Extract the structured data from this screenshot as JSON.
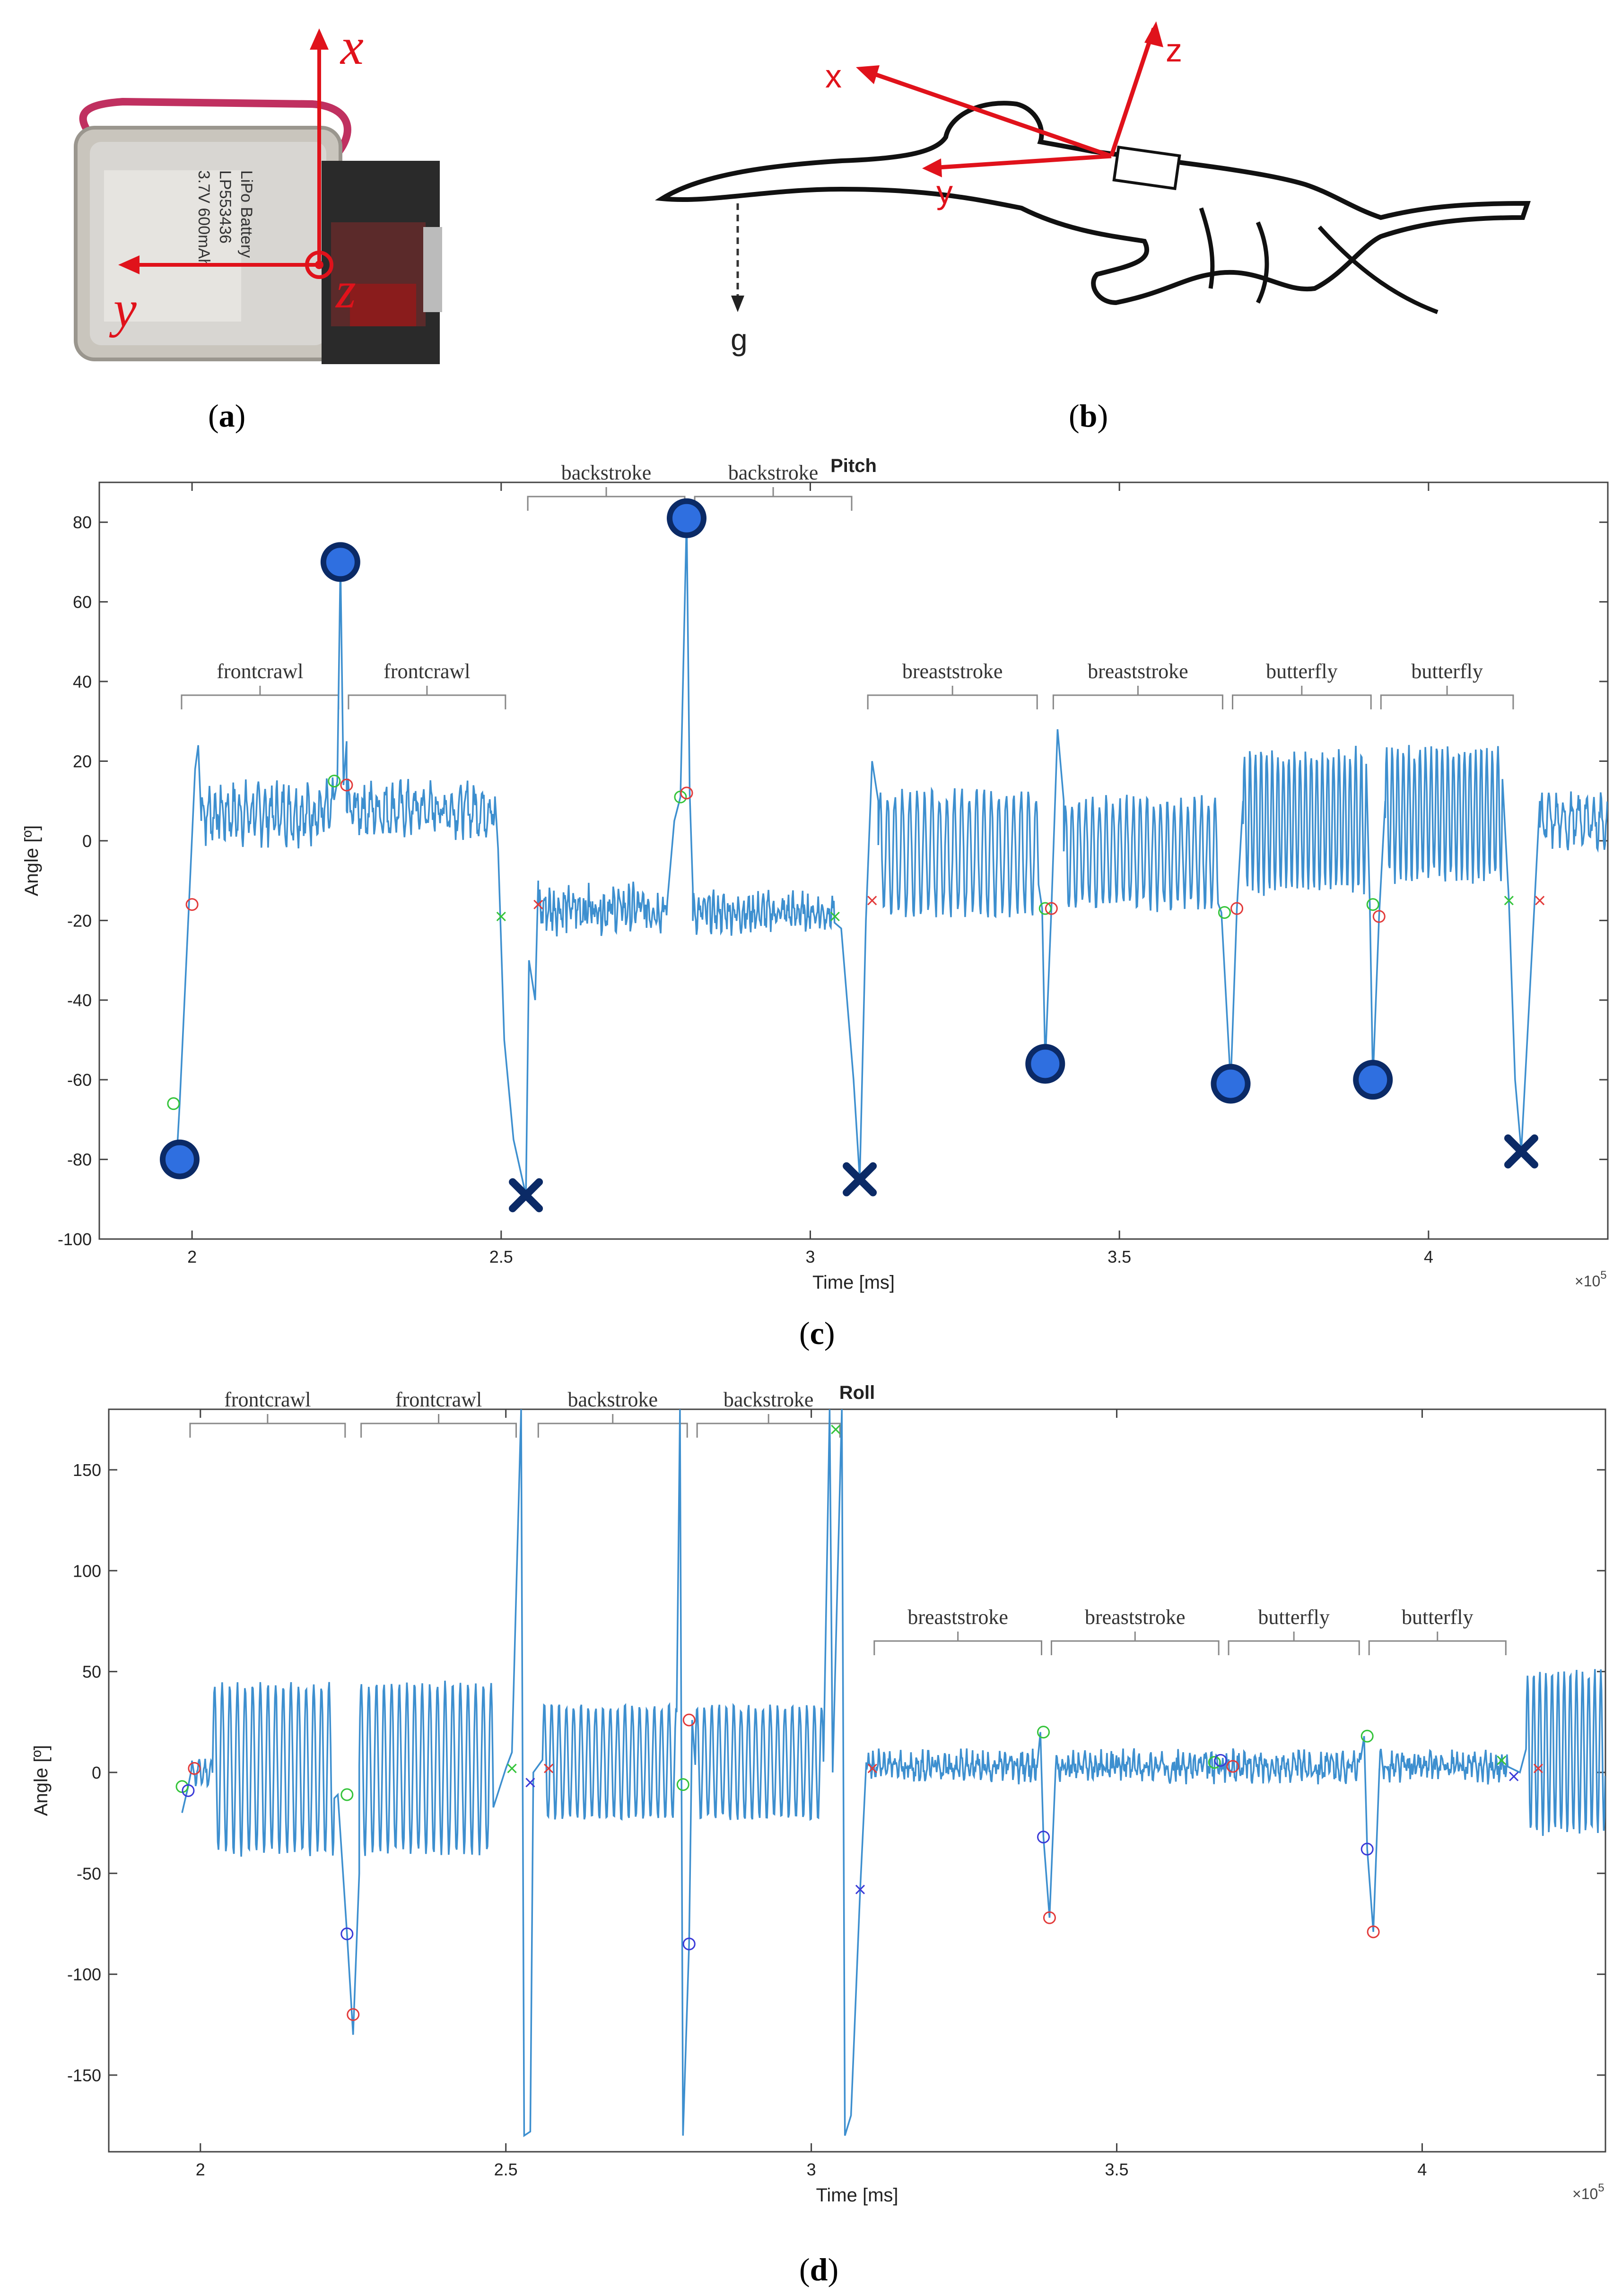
{
  "panels": {
    "a": {
      "open": "(",
      "letter": "a",
      "close": ")"
    },
    "b": {
      "open": "(",
      "letter": "b",
      "close": ")"
    },
    "c": {
      "open": "(",
      "letter": "c",
      "close": ")"
    },
    "d": {
      "open": "(",
      "letter": "d",
      "close": ")"
    }
  },
  "device": {
    "battery_text": [
      "LiPo Battery",
      "LP553436",
      "3.7V 600mAh"
    ],
    "axes": {
      "x": "x",
      "y": "y",
      "z": "z"
    }
  },
  "swimmer": {
    "axes": {
      "x": "x",
      "y": "y",
      "z": "z"
    },
    "gravity": "g"
  },
  "colors": {
    "signal": "#3d8fcf",
    "axis_red": "#e0121b",
    "marker_fill": "#2f6fe0",
    "marker_dark": "#0b2a66",
    "event_green": "#34c43a",
    "event_red": "#e23a3a",
    "event_blue": "#3a3ad8"
  },
  "chart_data": [
    {
      "type": "line",
      "title": "Pitch",
      "xlabel": "Time [ms]",
      "ylabel": "Angle [º]",
      "x_multiplier": "×10",
      "x_multiplier_exp": "5",
      "xlim": [
        1.85,
        4.29
      ],
      "ylim": [
        -100,
        90
      ],
      "xticks": [
        2,
        2.5,
        3,
        3.5,
        4
      ],
      "xtick_labels": [
        "2",
        "2.5",
        "3",
        "3.5",
        "4"
      ],
      "yticks": [
        -100,
        -80,
        -60,
        -40,
        -20,
        0,
        20,
        40,
        60,
        80
      ],
      "ytick_labels": [
        "-100",
        "-80",
        "-60",
        "-40",
        "-20",
        "0",
        "20",
        "40",
        "60",
        "80"
      ],
      "segments": [
        {
          "label": "frontcrawl",
          "x0": 1.98,
          "x1": 2.24,
          "row": "low"
        },
        {
          "label": "frontcrawl",
          "x0": 2.25,
          "x1": 2.51,
          "row": "low"
        },
        {
          "label": "backstroke",
          "x0": 2.54,
          "x1": 2.8,
          "row": "high"
        },
        {
          "label": "backstroke",
          "x0": 2.81,
          "x1": 3.07,
          "row": "high"
        },
        {
          "label": "breaststroke",
          "x0": 3.09,
          "x1": 3.37,
          "row": "low"
        },
        {
          "label": "breaststroke",
          "x0": 3.39,
          "x1": 3.67,
          "row": "low"
        },
        {
          "label": "butterfly",
          "x0": 3.68,
          "x1": 3.91,
          "row": "low"
        },
        {
          "label": "butterfly",
          "x0": 3.92,
          "x1": 4.14,
          "row": "low"
        }
      ],
      "key_circles": [
        {
          "x": 1.98,
          "y": -80
        },
        {
          "x": 2.24,
          "y": 70
        },
        {
          "x": 2.8,
          "y": 81
        },
        {
          "x": 3.38,
          "y": -56
        },
        {
          "x": 3.68,
          "y": -61
        },
        {
          "x": 3.91,
          "y": -60
        }
      ],
      "key_crosses": [
        {
          "x": 2.54,
          "y": -89
        },
        {
          "x": 3.08,
          "y": -85
        },
        {
          "x": 4.15,
          "y": -78
        }
      ],
      "green_circles": [
        [
          1.97,
          -66
        ],
        [
          2.23,
          15
        ],
        [
          2.79,
          11
        ],
        [
          3.38,
          -17
        ],
        [
          3.67,
          -18
        ],
        [
          3.91,
          -16
        ]
      ],
      "red_circles": [
        [
          2.0,
          -16
        ],
        [
          2.25,
          14
        ],
        [
          2.8,
          12
        ],
        [
          3.39,
          -17
        ],
        [
          3.69,
          -17
        ],
        [
          3.92,
          -19
        ]
      ],
      "green_crosses": [
        [
          2.5,
          -19
        ],
        [
          3.04,
          -19
        ],
        [
          4.13,
          -15
        ]
      ],
      "red_crosses": [
        [
          2.56,
          -16
        ],
        [
          3.1,
          -15
        ],
        [
          4.18,
          -15
        ]
      ],
      "series": [
        {
          "values_from": "signal"
        }
      ]
    },
    {
      "type": "line",
      "title": "Roll",
      "xlabel": "Time [ms]",
      "ylabel": "Angle [º]",
      "x_multiplier": "×10",
      "x_multiplier_exp": "5",
      "xlim": [
        1.85,
        4.3
      ],
      "ylim": [
        -188,
        180
      ],
      "xticks": [
        2,
        2.5,
        3,
        3.5,
        4
      ],
      "xtick_labels": [
        "2",
        "2.5",
        "3",
        "3.5",
        "4"
      ],
      "yticks": [
        -150,
        -100,
        -50,
        0,
        50,
        100,
        150
      ],
      "ytick_labels": [
        "-150",
        "-100",
        "-50",
        "0",
        "50",
        "100",
        "150"
      ],
      "segments": [
        {
          "label": "frontcrawl",
          "x0": 1.98,
          "x1": 2.24,
          "row": "high"
        },
        {
          "label": "frontcrawl",
          "x0": 2.26,
          "x1": 2.52,
          "row": "high"
        },
        {
          "label": "backstroke",
          "x0": 2.55,
          "x1": 2.8,
          "row": "high"
        },
        {
          "label": "backstroke",
          "x0": 2.81,
          "x1": 3.05,
          "row": "high"
        },
        {
          "label": "breaststroke",
          "x0": 3.1,
          "x1": 3.38,
          "row": "low"
        },
        {
          "label": "breaststroke",
          "x0": 3.39,
          "x1": 3.67,
          "row": "low"
        },
        {
          "label": "butterfly",
          "x0": 3.68,
          "x1": 3.9,
          "row": "low"
        },
        {
          "label": "butterfly",
          "x0": 3.91,
          "x1": 4.14,
          "row": "low"
        }
      ],
      "blue_circles": [
        [
          1.98,
          -9
        ],
        [
          2.24,
          -80
        ],
        [
          2.8,
          -85
        ],
        [
          3.38,
          -32
        ],
        [
          3.67,
          6
        ],
        [
          3.91,
          -38
        ]
      ],
      "red_circles": [
        [
          1.99,
          2
        ],
        [
          2.25,
          -120
        ],
        [
          2.8,
          26
        ],
        [
          3.39,
          -72
        ],
        [
          3.69,
          3
        ],
        [
          3.92,
          -79
        ]
      ],
      "green_circles": [
        [
          1.97,
          -7
        ],
        [
          2.24,
          -11
        ],
        [
          2.79,
          -6
        ],
        [
          3.38,
          20
        ],
        [
          3.66,
          5
        ],
        [
          3.91,
          18
        ]
      ],
      "blue_crosses": [
        [
          2.54,
          -5
        ],
        [
          3.08,
          -58
        ],
        [
          4.15,
          -2
        ]
      ],
      "red_crosses": [
        [
          2.57,
          2
        ],
        [
          3.1,
          2
        ],
        [
          4.19,
          2
        ]
      ],
      "green_crosses": [
        [
          2.51,
          2
        ],
        [
          3.04,
          170
        ],
        [
          4.13,
          6
        ]
      ]
    }
  ]
}
